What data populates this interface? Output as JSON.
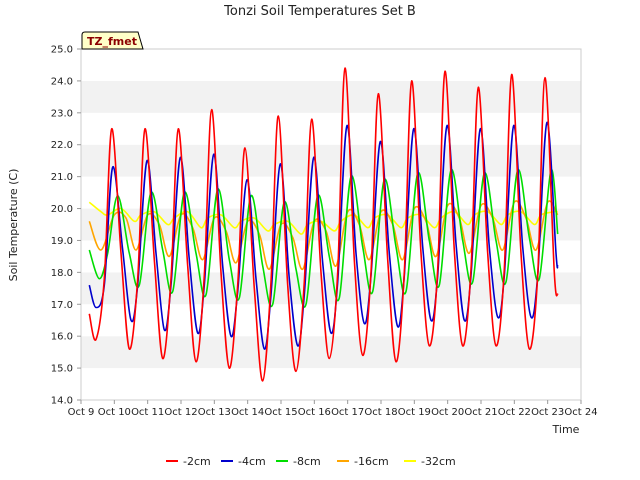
{
  "chart_data": {
    "type": "line",
    "title": "Tonzi Soil Temperatures Set B",
    "xlabel": "Time",
    "ylabel": "Soil Temperature (C)",
    "tag": "TZ_fmet",
    "xlim": [
      9,
      24
    ],
    "ylim": [
      14.0,
      25.0
    ],
    "x_ticks": [
      9,
      10,
      11,
      12,
      13,
      14,
      15,
      16,
      17,
      18,
      19,
      20,
      21,
      22,
      23,
      24
    ],
    "x_tick_labels": [
      "Oct 9",
      "Oct 10",
      "Oct 11",
      "Oct 12",
      "Oct 13",
      "Oct 14",
      "Oct 15",
      "Oct 16",
      "Oct 17",
      "Oct 18",
      "Oct 19",
      "Oct 20",
      "Oct 21",
      "Oct 22",
      "Oct 23",
      "Oct 24"
    ],
    "y_ticks": [
      14.0,
      15.0,
      16.0,
      17.0,
      18.0,
      19.0,
      20.0,
      21.0,
      22.0,
      23.0,
      24.0,
      25.0
    ],
    "y_tick_labels": [
      "14.0",
      "15.0",
      "16.0",
      "17.0",
      "18.0",
      "19.0",
      "20.0",
      "21.0",
      "22.0",
      "23.0",
      "24.0",
      "25.0"
    ],
    "grid": "horizontal bands",
    "legend_position": "bottom",
    "series": [
      {
        "name": "-2cm",
        "color": "#ff0000",
        "x": [
          9.25,
          9.45,
          9.7,
          9.92,
          10.2,
          10.45,
          10.7,
          10.92,
          11.2,
          11.45,
          11.7,
          11.92,
          12.2,
          12.45,
          12.7,
          12.92,
          13.2,
          13.45,
          13.7,
          13.92,
          14.2,
          14.45,
          14.7,
          14.92,
          15.2,
          15.45,
          15.7,
          15.92,
          16.2,
          16.45,
          16.7,
          16.92,
          17.2,
          17.45,
          17.7,
          17.92,
          18.2,
          18.45,
          18.7,
          18.92,
          19.2,
          19.45,
          19.7,
          19.92,
          20.2,
          20.45,
          20.7,
          20.92,
          21.2,
          21.45,
          21.7,
          21.92,
          22.2,
          22.45,
          22.7,
          22.92,
          23.2,
          23.3
        ],
        "y": [
          16.7,
          15.9,
          17.8,
          22.5,
          18.6,
          15.6,
          17.8,
          22.5,
          18.4,
          15.3,
          17.8,
          22.5,
          18.2,
          15.2,
          17.9,
          23.1,
          18.0,
          15.0,
          17.6,
          21.9,
          17.5,
          14.6,
          17.7,
          22.9,
          17.6,
          14.9,
          17.7,
          22.8,
          18.0,
          15.3,
          18.0,
          24.4,
          18.4,
          15.4,
          18.0,
          23.6,
          18.4,
          15.2,
          18.0,
          24.0,
          18.6,
          15.7,
          18.1,
          24.3,
          18.7,
          15.7,
          18.1,
          23.8,
          18.6,
          15.7,
          18.1,
          24.2,
          18.6,
          15.6,
          17.9,
          24.1,
          18.0,
          17.3
        ]
      },
      {
        "name": "-4cm",
        "color": "#0000cc",
        "x": [
          9.25,
          9.45,
          9.7,
          9.95,
          10.25,
          10.5,
          10.7,
          10.98,
          11.25,
          11.5,
          11.7,
          11.98,
          12.25,
          12.5,
          12.7,
          12.98,
          13.25,
          13.5,
          13.7,
          13.98,
          14.25,
          14.5,
          14.7,
          14.98,
          15.25,
          15.5,
          15.7,
          15.98,
          16.25,
          16.5,
          16.7,
          16.98,
          17.25,
          17.5,
          17.7,
          17.98,
          18.25,
          18.5,
          18.7,
          18.98,
          19.25,
          19.5,
          19.7,
          19.98,
          20.25,
          20.5,
          20.7,
          20.98,
          21.25,
          21.5,
          21.7,
          21.98,
          22.25,
          22.5,
          22.7,
          22.98,
          23.25,
          23.3
        ],
        "y": [
          17.6,
          16.9,
          17.6,
          21.3,
          18.7,
          16.5,
          17.6,
          21.5,
          18.6,
          16.2,
          17.6,
          21.6,
          18.4,
          16.1,
          17.6,
          21.7,
          18.2,
          16.0,
          17.4,
          20.9,
          17.8,
          15.6,
          17.3,
          21.4,
          17.8,
          15.7,
          17.3,
          21.6,
          18.3,
          16.1,
          17.7,
          22.6,
          18.6,
          16.4,
          17.9,
          22.1,
          18.6,
          16.3,
          17.9,
          22.5,
          18.8,
          16.5,
          17.9,
          22.6,
          18.9,
          16.5,
          17.9,
          22.5,
          18.8,
          16.6,
          17.9,
          22.6,
          18.8,
          16.6,
          17.9,
          22.7,
          18.6,
          18.2
        ]
      },
      {
        "name": "-8cm",
        "color": "#00dd00",
        "x": [
          9.25,
          9.55,
          9.8,
          10.1,
          10.45,
          10.75,
          11.1,
          11.45,
          11.75,
          12.1,
          12.45,
          12.75,
          13.1,
          13.45,
          13.75,
          14.1,
          14.45,
          14.75,
          15.1,
          15.45,
          15.75,
          16.1,
          16.45,
          16.75,
          17.1,
          17.45,
          17.75,
          18.1,
          18.45,
          18.75,
          19.1,
          19.45,
          19.75,
          20.1,
          20.45,
          20.75,
          21.1,
          21.45,
          21.75,
          22.1,
          22.45,
          22.75,
          23.1,
          23.3
        ],
        "y": [
          18.7,
          17.8,
          18.6,
          20.4,
          18.6,
          17.6,
          20.5,
          18.7,
          17.4,
          20.5,
          18.6,
          17.3,
          20.6,
          18.4,
          17.2,
          20.4,
          18.2,
          17.0,
          20.2,
          18.1,
          17.0,
          20.4,
          18.5,
          17.2,
          21.0,
          18.8,
          17.4,
          20.9,
          18.8,
          17.4,
          21.1,
          19.0,
          17.6,
          21.2,
          19.0,
          17.7,
          21.1,
          19.0,
          17.7,
          21.2,
          19.1,
          17.8,
          21.2,
          19.2
        ]
      },
      {
        "name": "-16cm",
        "color": "#ffa500",
        "x": [
          9.25,
          9.6,
          10.0,
          10.35,
          10.65,
          11.0,
          11.35,
          11.65,
          12.0,
          12.35,
          12.65,
          13.0,
          13.35,
          13.65,
          14.0,
          14.35,
          14.65,
          15.0,
          15.35,
          15.65,
          16.0,
          16.35,
          16.65,
          17.0,
          17.35,
          17.65,
          18.0,
          18.35,
          18.65,
          19.0,
          19.35,
          19.65,
          20.0,
          20.35,
          20.65,
          21.0,
          21.35,
          21.65,
          22.0,
          22.35,
          22.65,
          23.0,
          23.3
        ],
        "y": [
          19.6,
          18.7,
          19.8,
          19.7,
          18.7,
          19.8,
          19.5,
          18.5,
          19.8,
          19.4,
          18.4,
          19.7,
          19.3,
          18.3,
          19.6,
          19.2,
          18.1,
          19.5,
          19.1,
          18.1,
          19.6,
          19.3,
          18.2,
          19.9,
          19.5,
          18.4,
          19.9,
          19.5,
          18.4,
          20.0,
          19.6,
          18.5,
          20.1,
          19.7,
          18.6,
          20.1,
          19.7,
          18.7,
          20.2,
          19.7,
          18.7,
          20.2,
          19.8
        ]
      },
      {
        "name": "-32cm",
        "color": "#ffff00",
        "x": [
          9.25,
          9.6,
          9.8,
          10.2,
          10.6,
          10.8,
          11.2,
          11.6,
          11.8,
          12.2,
          12.6,
          12.8,
          13.2,
          13.6,
          13.8,
          14.2,
          14.6,
          14.8,
          15.2,
          15.6,
          15.8,
          16.2,
          16.6,
          16.8,
          17.2,
          17.6,
          17.8,
          18.2,
          18.6,
          18.8,
          19.2,
          19.6,
          19.8,
          20.2,
          20.6,
          20.8,
          21.2,
          21.6,
          21.8,
          22.2,
          22.6,
          22.8,
          23.2,
          23.3
        ],
        "y": [
          20.2,
          19.9,
          19.8,
          20.0,
          19.6,
          19.8,
          19.9,
          19.5,
          19.7,
          19.9,
          19.4,
          19.7,
          19.8,
          19.4,
          19.6,
          19.7,
          19.3,
          19.5,
          19.6,
          19.2,
          19.5,
          19.6,
          19.3,
          19.6,
          19.8,
          19.4,
          19.7,
          19.8,
          19.4,
          19.7,
          19.8,
          19.4,
          19.7,
          19.9,
          19.5,
          19.8,
          19.9,
          19.5,
          19.8,
          19.9,
          19.5,
          19.8,
          19.9,
          19.9
        ]
      }
    ]
  }
}
